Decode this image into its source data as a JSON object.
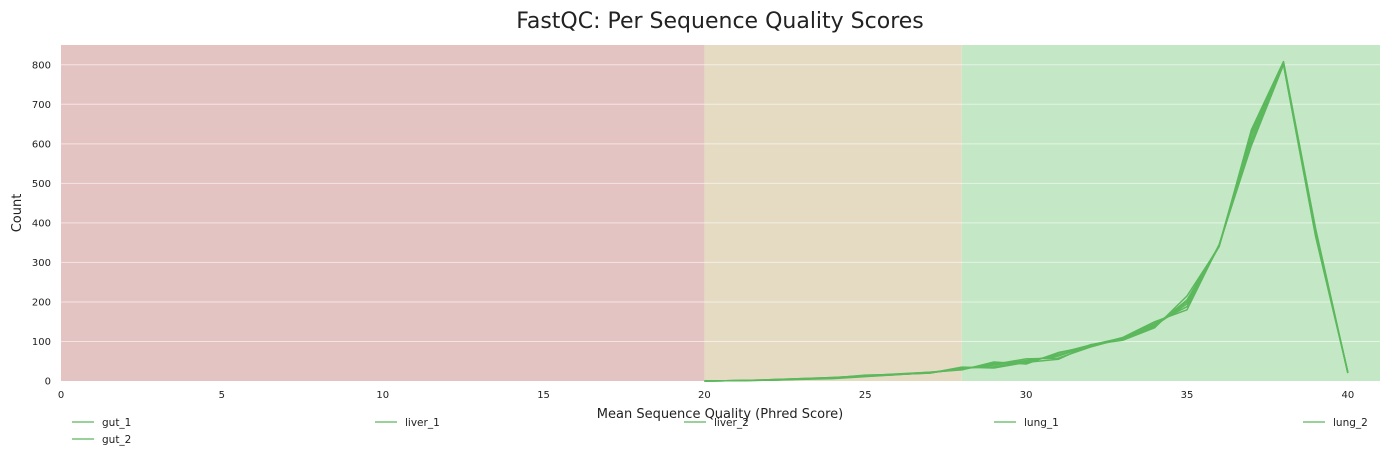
{
  "chart_data": {
    "type": "line",
    "title": "FastQC: Per Sequence Quality Scores",
    "xlabel": "Mean Sequence Quality (Phred Score)",
    "ylabel": "Count",
    "xlim": [
      0,
      41
    ],
    "ylim": [
      0,
      850
    ],
    "xticks": [
      0,
      5,
      10,
      15,
      20,
      25,
      30,
      35,
      40
    ],
    "yticks": [
      0,
      100,
      200,
      300,
      400,
      500,
      600,
      700,
      800
    ],
    "grid": true,
    "legend_position": "bottom",
    "line_color": "#5cb85c",
    "bands": [
      {
        "from": 0,
        "to": 20,
        "color": "#e4c3c3"
      },
      {
        "from": 20,
        "to": 28,
        "color": "#e5dbc3"
      },
      {
        "from": 28,
        "to": 41,
        "color": "#c4e7c5"
      }
    ],
    "x": [
      20,
      21,
      22,
      23,
      24,
      25,
      26,
      27,
      28,
      29,
      30,
      31,
      32,
      33,
      34,
      35,
      36,
      37,
      38,
      39,
      40
    ],
    "series": [
      {
        "name": "gut_1",
        "values": [
          0,
          1,
          2,
          5,
          8,
          15,
          17,
          20,
          35,
          33,
          47,
          55,
          92,
          103,
          135,
          215,
          340,
          635,
          808,
          385,
          20
        ]
      },
      {
        "name": "gut_2",
        "values": [
          0,
          1,
          3,
          6,
          9,
          13,
          17,
          22,
          28,
          48,
          43,
          72,
          88,
          110,
          150,
          180,
          345,
          595,
          800,
          365,
          22
        ]
      },
      {
        "name": "liver_1",
        "values": [
          0,
          1,
          2,
          4,
          6,
          11,
          16,
          21,
          31,
          40,
          52,
          63,
          90,
          107,
          142,
          200,
          342,
          620,
          805,
          378,
          21
        ]
      },
      {
        "name": "liver_2",
        "values": [
          0,
          1,
          3,
          5,
          7,
          12,
          16,
          21,
          30,
          42,
          56,
          58,
          86,
          108,
          140,
          195,
          341,
          610,
          803,
          372,
          23
        ]
      },
      {
        "name": "lung_1",
        "values": [
          0,
          1,
          2,
          5,
          8,
          14,
          17,
          20,
          33,
          36,
          49,
          66,
          89,
          105,
          138,
          205,
          343,
          628,
          806,
          380,
          20
        ]
      },
      {
        "name": "lung_2",
        "values": [
          0,
          1,
          3,
          6,
          9,
          13,
          18,
          22,
          29,
          45,
          45,
          70,
          91,
          109,
          146,
          188,
          344,
          600,
          802,
          368,
          22
        ]
      }
    ]
  }
}
